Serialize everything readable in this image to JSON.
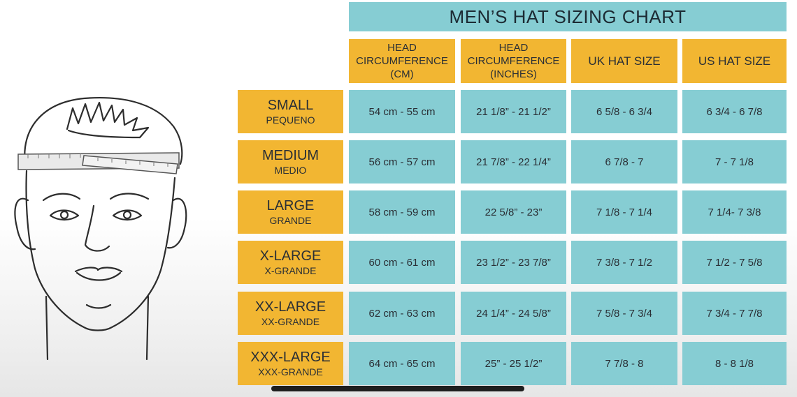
{
  "title": "MEN’S HAT SIZING CHART",
  "columns": [
    {
      "line1": "HEAD",
      "line2": "CIRCUMFERENCE",
      "line3": "(CM)"
    },
    {
      "line1": "HEAD",
      "line2": "CIRCUMFERENCE",
      "line3": "(INCHES)"
    },
    {
      "line1": "UK HAT SIZE"
    },
    {
      "line1": "US HAT SIZE"
    }
  ],
  "rows": [
    {
      "size": "SMALL",
      "spanish": "PEQUENO",
      "cm": "54 cm - 55 cm",
      "inches": "21 1/8” - 21 1/2”",
      "uk": "6 5/8 - 6 3/4",
      "us": "6 3/4 - 6 7/8"
    },
    {
      "size": "MEDIUM",
      "spanish": "MEDIO",
      "cm": "56 cm - 57 cm",
      "inches": "21 7/8” - 22 1/4”",
      "uk": "6 7/8 - 7",
      "us": "7 - 7 1/8"
    },
    {
      "size": "LARGE",
      "spanish": "GRANDE",
      "cm": "58 cm - 59 cm",
      "inches": "22 5/8” - 23”",
      "uk": "7 1/8 - 7 1/4",
      "us": "7 1/4- 7 3/8"
    },
    {
      "size": "X-LARGE",
      "spanish": "X-GRANDE",
      "cm": "60 cm - 61 cm",
      "inches": "23 1/2” - 23 7/8”",
      "uk": "7 3/8 - 7 1/2",
      "us": "7 1/2 - 7 5/8"
    },
    {
      "size": "XX-LARGE",
      "spanish": "XX-GRANDE",
      "cm": "62 cm - 63 cm",
      "inches": "24 1/4” - 24 5/8”",
      "uk": "7 5/8 - 7 3/4",
      "us": "7 3/4 - 7 7/8"
    },
    {
      "size": "XXX-LARGE",
      "spanish": "XXX-GRANDE",
      "cm": "64 cm - 65 cm",
      "inches": "25” - 25 1/2”",
      "uk": "7 7/8 - 8",
      "us": "8 - 8 1/8"
    }
  ],
  "colors": {
    "teal": "#86cdd3",
    "gold": "#f2b632",
    "text": "#2a2f35"
  },
  "icons": {
    "illustration": "head-measuring-tape-illustration"
  }
}
